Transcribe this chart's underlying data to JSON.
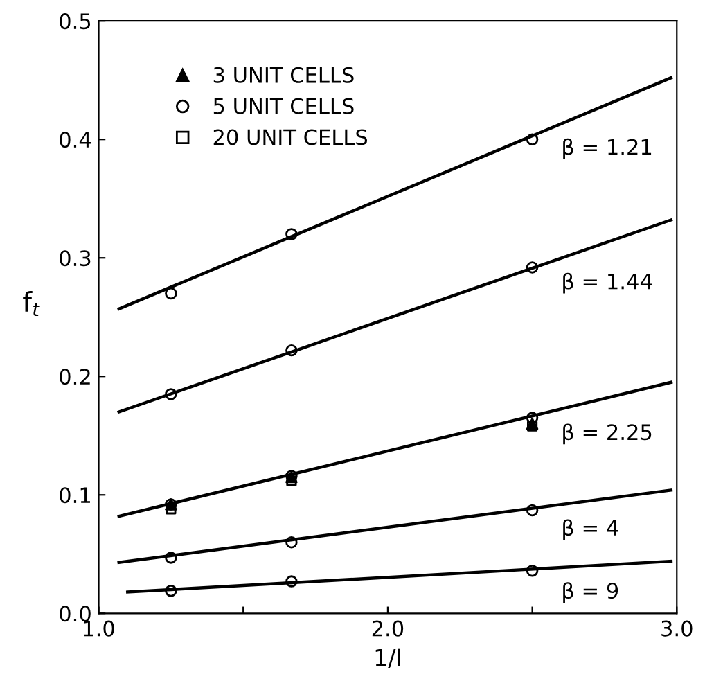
{
  "chart_data": {
    "type": "scatter",
    "xlabel": "1/l",
    "ylabel": "f$_{t}$",
    "xlim": [
      1.0,
      3.0
    ],
    "ylim": [
      0.0,
      0.5
    ],
    "xticks": [
      {
        "value": 1.0,
        "label": "1.0"
      },
      {
        "value": 1.5,
        "label": null
      },
      {
        "value": 2.0,
        "label": "2.0"
      },
      {
        "value": 2.5,
        "label": null
      },
      {
        "value": 3.0,
        "label": "3.0"
      }
    ],
    "yticks": [
      {
        "value": 0.0,
        "label": "0.0"
      },
      0.1,
      0.2,
      0.3,
      0.4,
      0.5
    ],
    "grid": false,
    "legend": "top left",
    "series": [
      {
        "name": "3 UNIT CELLS",
        "marker": "triangle",
        "color": "#000000",
        "x": [
          1.25,
          1.667,
          2.5
        ],
        "values": [
          0.092,
          0.115,
          0.16
        ]
      },
      {
        "name": "5 UNIT CELLS",
        "marker": "circle",
        "color": "#000000",
        "x": [
          1.25,
          1.667,
          2.5,
          1.25,
          1.667,
          2.5,
          1.25,
          1.667,
          2.5,
          1.25,
          1.667,
          2.5,
          1.25,
          1.667,
          2.5
        ],
        "values": [
          0.27,
          0.32,
          0.4,
          0.185,
          0.222,
          0.292,
          0.092,
          0.116,
          0.165,
          0.047,
          0.06,
          0.087,
          0.019,
          0.027,
          0.036
        ]
      },
      {
        "name": "20 UNIT CELLS",
        "marker": "square",
        "color": "#000000",
        "x": [
          1.25,
          1.667,
          2.5
        ],
        "values": [
          0.088,
          0.112,
          0.158
        ]
      },
      {
        "type": "line",
        "color": "#000000",
        "x": [
          1.07,
          2.98
        ],
        "values": [
          0.257,
          0.452
        ]
      },
      {
        "type": "line",
        "color": "#000000",
        "x": [
          1.07,
          2.98
        ],
        "values": [
          0.17,
          0.332
        ]
      },
      {
        "type": "line",
        "color": "#000000",
        "x": [
          1.07,
          2.98
        ],
        "values": [
          0.082,
          0.195
        ]
      },
      {
        "type": "line",
        "color": "#000000",
        "x": [
          1.07,
          2.98
        ],
        "values": [
          0.043,
          0.104
        ]
      },
      {
        "type": "line",
        "color": "#000000",
        "x": [
          1.1,
          2.98
        ],
        "values": [
          0.018,
          0.044
        ]
      }
    ],
    "annotations": [
      "β = 1.21",
      "β = 1.44",
      "β = 2.25",
      "β = 4",
      "β = 9"
    ]
  }
}
